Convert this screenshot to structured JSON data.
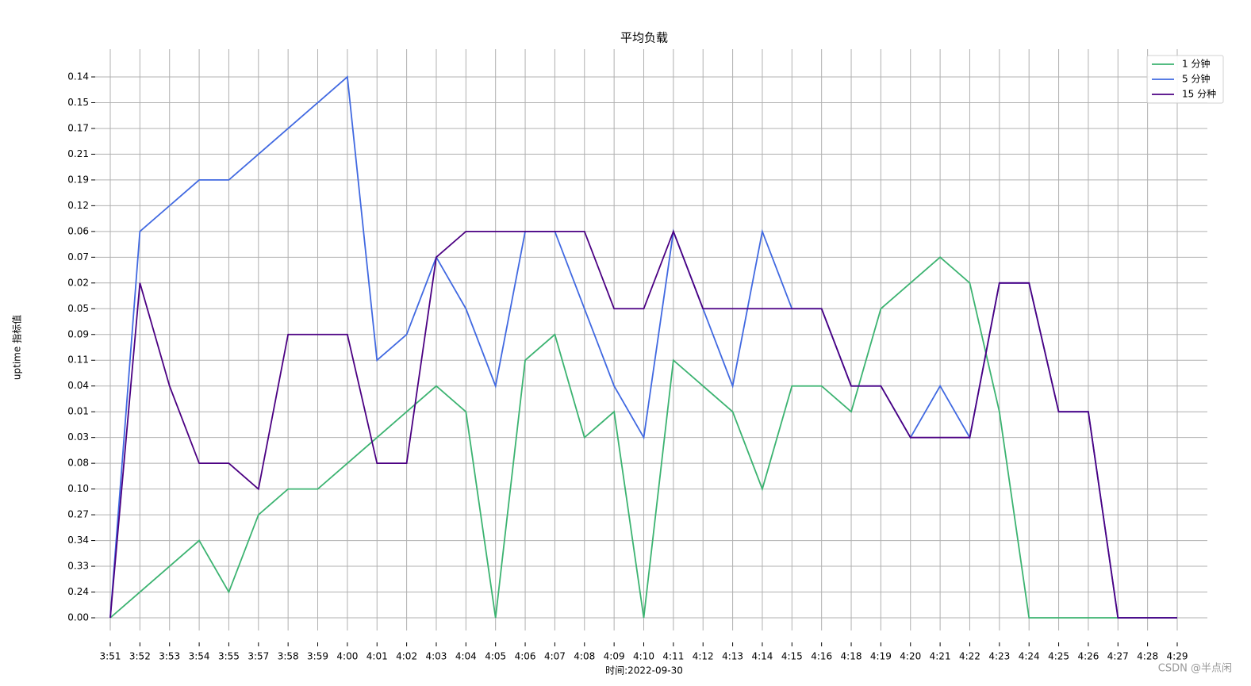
{
  "chart_data": {
    "type": "line",
    "title": "平均负载",
    "xlabel": "时间:2022-09-30",
    "ylabel": "uptime 指标值",
    "watermark": "CSDN @半点闲",
    "grid": true,
    "legend": "upper right",
    "categories": [
      "3:51",
      "3:52",
      "3:53",
      "3:54",
      "3:55",
      "3:57",
      "3:58",
      "3:59",
      "4:00",
      "4:01",
      "4:02",
      "4:03",
      "4:04",
      "4:05",
      "4:06",
      "4:07",
      "4:08",
      "4:09",
      "4:10",
      "4:11",
      "4:12",
      "4:13",
      "4:14",
      "4:15",
      "4:16",
      "4:18",
      "4:19",
      "4:20",
      "4:21",
      "4:22",
      "4:23",
      "4:24",
      "4:25",
      "4:26",
      "4:27",
      "4:28",
      "4:29"
    ],
    "ycategories": [
      "0.00",
      "0.24",
      "0.33",
      "0.34",
      "0.27",
      "0.10",
      "0.08",
      "0.03",
      "0.01",
      "0.04",
      "0.11",
      "0.09",
      "0.05",
      "0.02",
      "0.07",
      "0.06",
      "0.12",
      "0.19",
      "0.21",
      "0.17",
      "0.15",
      "0.14"
    ],
    "series": [
      {
        "name": "1 分钟",
        "color": "#3cb371",
        "values": [
          "0.00",
          "0.24",
          "0.33",
          "0.34",
          "0.24",
          "0.27",
          "0.10",
          "0.10",
          "0.08",
          "0.03",
          "0.01",
          "0.04",
          "0.01",
          "0.00",
          "0.11",
          "0.09",
          "0.03",
          "0.01",
          "0.00",
          "0.11",
          "0.04",
          "0.01",
          "0.10",
          "0.04",
          "0.04",
          "0.01",
          "0.05",
          "0.02",
          "0.07",
          "0.02",
          "0.01",
          "0.00",
          "0.00",
          "0.00",
          "0.00",
          "0.00",
          "0.00"
        ]
      },
      {
        "name": "5 分钟",
        "color": "#4169e1",
        "values": [
          "0.00",
          "0.06",
          "0.12",
          "0.19",
          "0.19",
          "0.21",
          "0.17",
          "0.15",
          "0.14",
          "0.11",
          "0.09",
          "0.07",
          "0.05",
          "0.04",
          "0.06",
          "0.06",
          "0.05",
          "0.04",
          "0.03",
          "0.06",
          "0.05",
          "0.04",
          "0.06",
          "0.05",
          "0.05",
          "0.04",
          "0.04",
          "0.03",
          "0.04",
          "0.03",
          "0.02",
          "0.02",
          "0.01",
          "0.01",
          "0.00",
          "0.00",
          "0.00"
        ]
      },
      {
        "name": "15 分种",
        "color": "#4b0082",
        "values": [
          "0.00",
          "0.02",
          "0.04",
          "0.08",
          "0.08",
          "0.10",
          "0.09",
          "0.09",
          "0.09",
          "0.08",
          "0.08",
          "0.07",
          "0.06",
          "0.06",
          "0.06",
          "0.06",
          "0.06",
          "0.05",
          "0.05",
          "0.06",
          "0.05",
          "0.05",
          "0.05",
          "0.05",
          "0.05",
          "0.04",
          "0.04",
          "0.03",
          "0.03",
          "0.03",
          "0.02",
          "0.02",
          "0.01",
          "0.01",
          "0.00",
          "0.00",
          "0.00"
        ]
      }
    ]
  }
}
